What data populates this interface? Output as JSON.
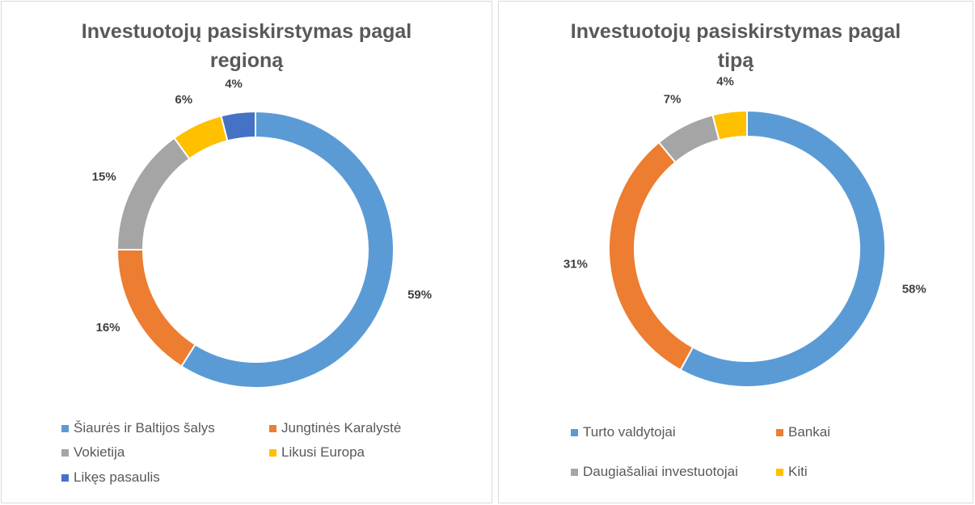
{
  "colors": {
    "blue": "#5b9bd5",
    "orange": "#ed7d31",
    "gray": "#a5a5a5",
    "yellow": "#ffc000",
    "darkblue": "#4472c4"
  },
  "chart_data": [
    {
      "type": "pie",
      "donut": true,
      "title_lines": [
        "Investuotojų pasiskirstymas pagal",
        "regioną"
      ],
      "categories": [
        "Šiaurės ir Baltijos šalys",
        "Jungtinės Karalystė",
        "Vokietija",
        "Likusi Europa",
        "Likęs pasaulis"
      ],
      "values": [
        59,
        16,
        15,
        6,
        4
      ],
      "labels": [
        "59%",
        "16%",
        "15%",
        "6%",
        "4%"
      ],
      "colors": [
        "#5b9bd5",
        "#ed7d31",
        "#a5a5a5",
        "#ffc000",
        "#4472c4"
      ],
      "legend": "bottom"
    },
    {
      "type": "pie",
      "donut": true,
      "title_lines": [
        "Investuotojų pasiskirstymas pagal",
        "tipą"
      ],
      "categories": [
        "Turto valdytojai",
        "Bankai",
        "Daugiašaliai investuotojai",
        "Kiti"
      ],
      "values": [
        58,
        31,
        7,
        4
      ],
      "labels": [
        "58%",
        "31%",
        "7%",
        "4%"
      ],
      "colors": [
        "#5b9bd5",
        "#ed7d31",
        "#a5a5a5",
        "#ffc000"
      ],
      "legend": "bottom"
    }
  ]
}
